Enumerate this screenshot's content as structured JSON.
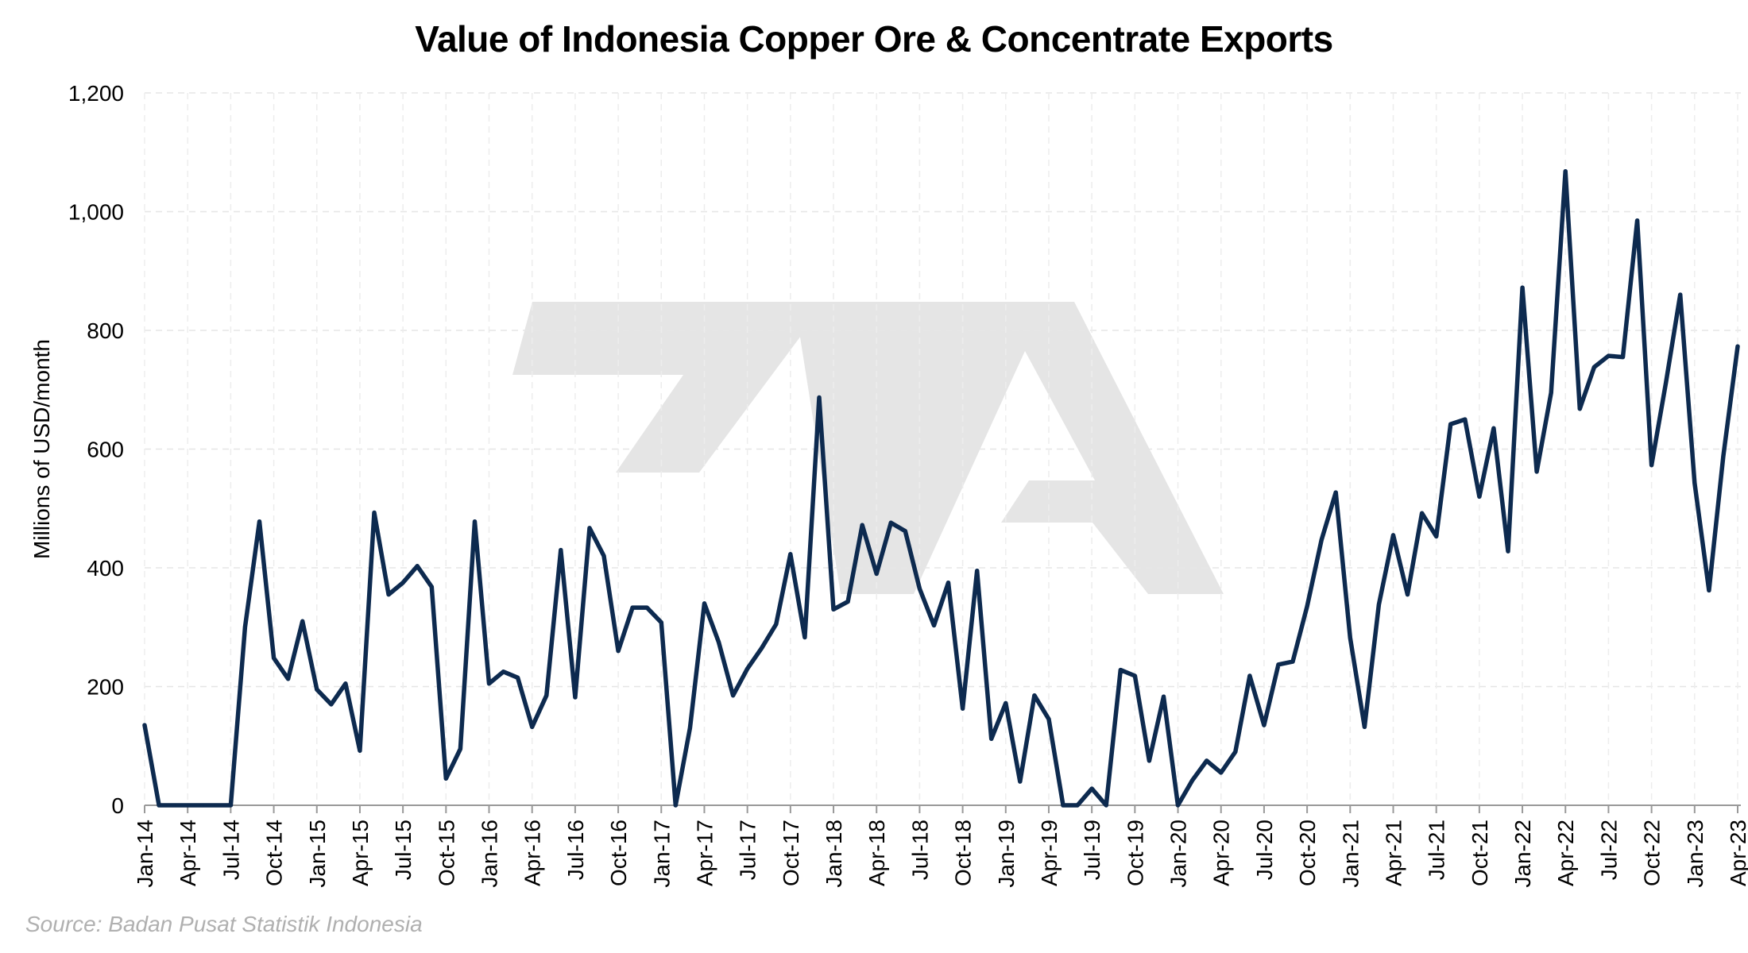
{
  "chart_data": {
    "type": "line",
    "title": "Value of Indonesia Copper Ore & Concentrate Exports",
    "ylabel": "Millions of USD/month",
    "xlabel": "",
    "ylim": [
      0,
      1200
    ],
    "yticks": [
      0,
      200,
      400,
      600,
      800,
      1000,
      1200
    ],
    "ytick_labels": [
      "0",
      "200",
      "400",
      "600",
      "800",
      "1,000",
      "1,200"
    ],
    "xtick_labels": [
      "Jan-14",
      "Apr-14",
      "Jul-14",
      "Oct-14",
      "Jan-15",
      "Apr-15",
      "Jul-15",
      "Oct-15",
      "Jan-16",
      "Apr-16",
      "Jul-16",
      "Oct-16",
      "Jan-17",
      "Apr-17",
      "Jul-17",
      "Oct-17",
      "Jan-18",
      "Apr-18",
      "Jul-18",
      "Oct-18",
      "Jan-19",
      "Apr-19",
      "Jul-19",
      "Oct-19",
      "Jan-20",
      "Apr-20",
      "Jul-20",
      "Oct-20",
      "Jan-21",
      "Apr-21",
      "Jul-21",
      "Oct-21",
      "Jan-22",
      "Apr-22",
      "Jul-22",
      "Oct-22",
      "Jan-23",
      "Apr-23"
    ],
    "grid": true,
    "series_color": "#0d2a4f",
    "start_month": "Jan-14",
    "values": [
      135,
      0,
      0,
      0,
      0,
      0,
      0,
      300,
      478,
      248,
      213,
      310,
      195,
      170,
      205,
      92,
      493,
      355,
      375,
      403,
      368,
      45,
      95,
      478,
      205,
      225,
      215,
      132,
      185,
      430,
      182,
      467,
      420,
      260,
      333,
      333,
      308,
      0,
      130,
      340,
      275,
      185,
      230,
      265,
      305,
      423,
      283,
      687,
      330,
      343,
      472,
      390,
      476,
      462,
      365,
      303,
      375,
      163,
      395,
      112,
      172,
      40,
      185,
      145,
      0,
      0,
      28,
      0,
      228,
      218,
      75,
      183,
      0,
      42,
      75,
      55,
      90,
      218,
      135,
      237,
      242,
      335,
      447,
      527,
      282,
      132,
      338,
      455,
      355,
      492,
      453,
      642,
      650,
      520,
      635,
      428,
      872,
      562,
      695,
      1068,
      668,
      738,
      757,
      755,
      985,
      573,
      712,
      860,
      543,
      362,
      588,
      773
    ]
  },
  "source": "Source: Badan Pusat Statistik Indonesia",
  "watermark": "logo"
}
